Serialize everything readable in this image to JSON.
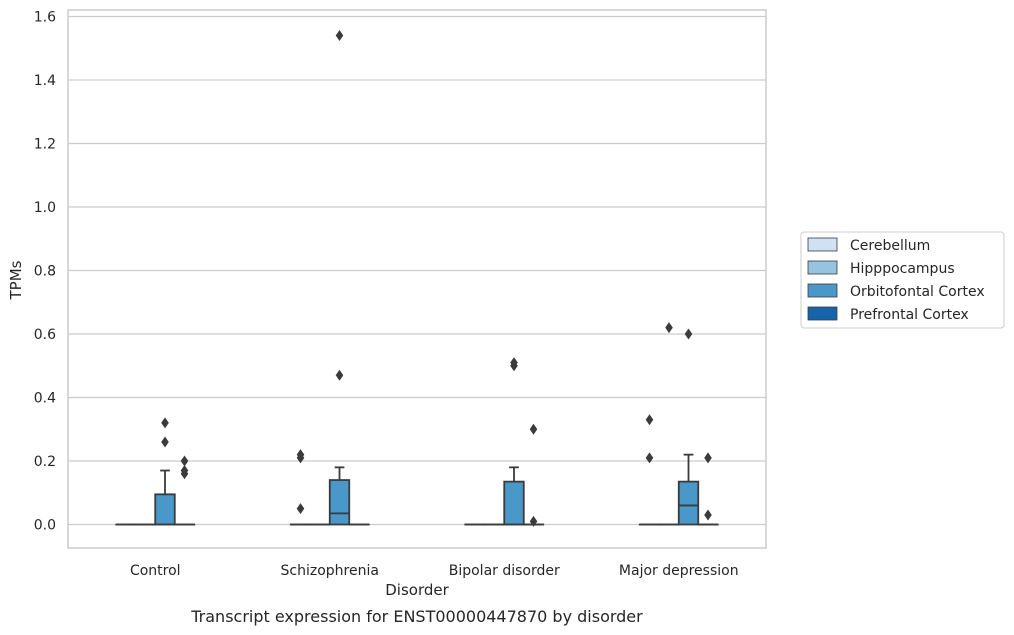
{
  "chart_data": {
    "type": "box",
    "xlabel": "Disorder",
    "ylabel": "TPMs",
    "caption": "Transcript expression for ENST00000447870 by disorder",
    "ylim": [
      -0.075,
      1.62
    ],
    "yticks": [
      "0.0",
      "0.2",
      "0.4",
      "0.6",
      "0.8",
      "1.0",
      "1.2",
      "1.4",
      "1.6"
    ],
    "ytick_values": [
      0.0,
      0.2,
      0.4,
      0.6,
      0.8,
      1.0,
      1.2,
      1.4,
      1.6
    ],
    "grid": true,
    "legend_position": "right",
    "categories": [
      "Control",
      "Schizophrenia",
      "Bipolar disorder",
      "Major depression"
    ],
    "series": [
      {
        "name": "Cerebellum",
        "color": "#d0e1f2"
      },
      {
        "name": "Hipppocampus",
        "color": "#94c4df"
      },
      {
        "name": "Orbitofontal Cortex",
        "color": "#4a98c9"
      },
      {
        "name": "Prefrontal Cortex",
        "color": "#1764ab"
      }
    ],
    "boxes": [
      {
        "category": "Control",
        "series": "Cerebellum",
        "q1": 0,
        "median": 0,
        "q3": 0,
        "whisker_low": 0,
        "whisker_high": 0,
        "outliers": []
      },
      {
        "category": "Control",
        "series": "Hipppocampus",
        "q1": 0,
        "median": 0,
        "q3": 0,
        "whisker_low": 0,
        "whisker_high": 0,
        "outliers": []
      },
      {
        "category": "Control",
        "series": "Orbitofontal Cortex",
        "q1": 0,
        "median": 0,
        "q3": 0.095,
        "whisker_low": 0,
        "whisker_high": 0.17,
        "outliers": [
          0.32,
          0.26
        ]
      },
      {
        "category": "Control",
        "series": "Prefrontal Cortex",
        "q1": 0,
        "median": 0,
        "q3": 0,
        "whisker_low": 0,
        "whisker_high": 0,
        "outliers": [
          0.2,
          0.17,
          0.16
        ]
      },
      {
        "category": "Schizophrenia",
        "series": "Cerebellum",
        "q1": 0,
        "median": 0,
        "q3": 0,
        "whisker_low": 0,
        "whisker_high": 0,
        "outliers": [
          0.22,
          0.21,
          0.05
        ]
      },
      {
        "category": "Schizophrenia",
        "series": "Hipppocampus",
        "q1": 0,
        "median": 0,
        "q3": 0,
        "whisker_low": 0,
        "whisker_high": 0,
        "outliers": []
      },
      {
        "category": "Schizophrenia",
        "series": "Orbitofontal Cortex",
        "q1": 0,
        "median": 0.035,
        "q3": 0.14,
        "whisker_low": 0,
        "whisker_high": 0.18,
        "outliers": [
          1.54,
          0.47
        ]
      },
      {
        "category": "Schizophrenia",
        "series": "Prefrontal Cortex",
        "q1": 0,
        "median": 0,
        "q3": 0,
        "whisker_low": 0,
        "whisker_high": 0,
        "outliers": []
      },
      {
        "category": "Bipolar disorder",
        "series": "Cerebellum",
        "q1": 0,
        "median": 0,
        "q3": 0,
        "whisker_low": 0,
        "whisker_high": 0,
        "outliers": []
      },
      {
        "category": "Bipolar disorder",
        "series": "Hipppocampus",
        "q1": 0,
        "median": 0,
        "q3": 0,
        "whisker_low": 0,
        "whisker_high": 0,
        "outliers": []
      },
      {
        "category": "Bipolar disorder",
        "series": "Orbitofontal Cortex",
        "q1": 0,
        "median": 0,
        "q3": 0.135,
        "whisker_low": 0,
        "whisker_high": 0.18,
        "outliers": [
          0.51,
          0.5
        ]
      },
      {
        "category": "Bipolar disorder",
        "series": "Prefrontal Cortex",
        "q1": 0,
        "median": 0,
        "q3": 0,
        "whisker_low": 0,
        "whisker_high": 0,
        "outliers": [
          0.3,
          0.01
        ]
      },
      {
        "category": "Major depression",
        "series": "Cerebellum",
        "q1": 0,
        "median": 0,
        "q3": 0,
        "whisker_low": 0,
        "whisker_high": 0,
        "outliers": [
          0.33,
          0.21
        ]
      },
      {
        "category": "Major depression",
        "series": "Hipppocampus",
        "q1": 0,
        "median": 0,
        "q3": 0,
        "whisker_low": 0,
        "whisker_high": 0,
        "outliers": [
          0.62
        ]
      },
      {
        "category": "Major depression",
        "series": "Orbitofontal Cortex",
        "q1": 0,
        "median": 0.06,
        "q3": 0.135,
        "whisker_low": 0,
        "whisker_high": 0.22,
        "outliers": [
          0.6
        ]
      },
      {
        "category": "Major depression",
        "series": "Prefrontal Cortex",
        "q1": 0,
        "median": 0,
        "q3": 0,
        "whisker_low": 0,
        "whisker_high": 0,
        "outliers": [
          0.21,
          0.03
        ]
      }
    ]
  }
}
